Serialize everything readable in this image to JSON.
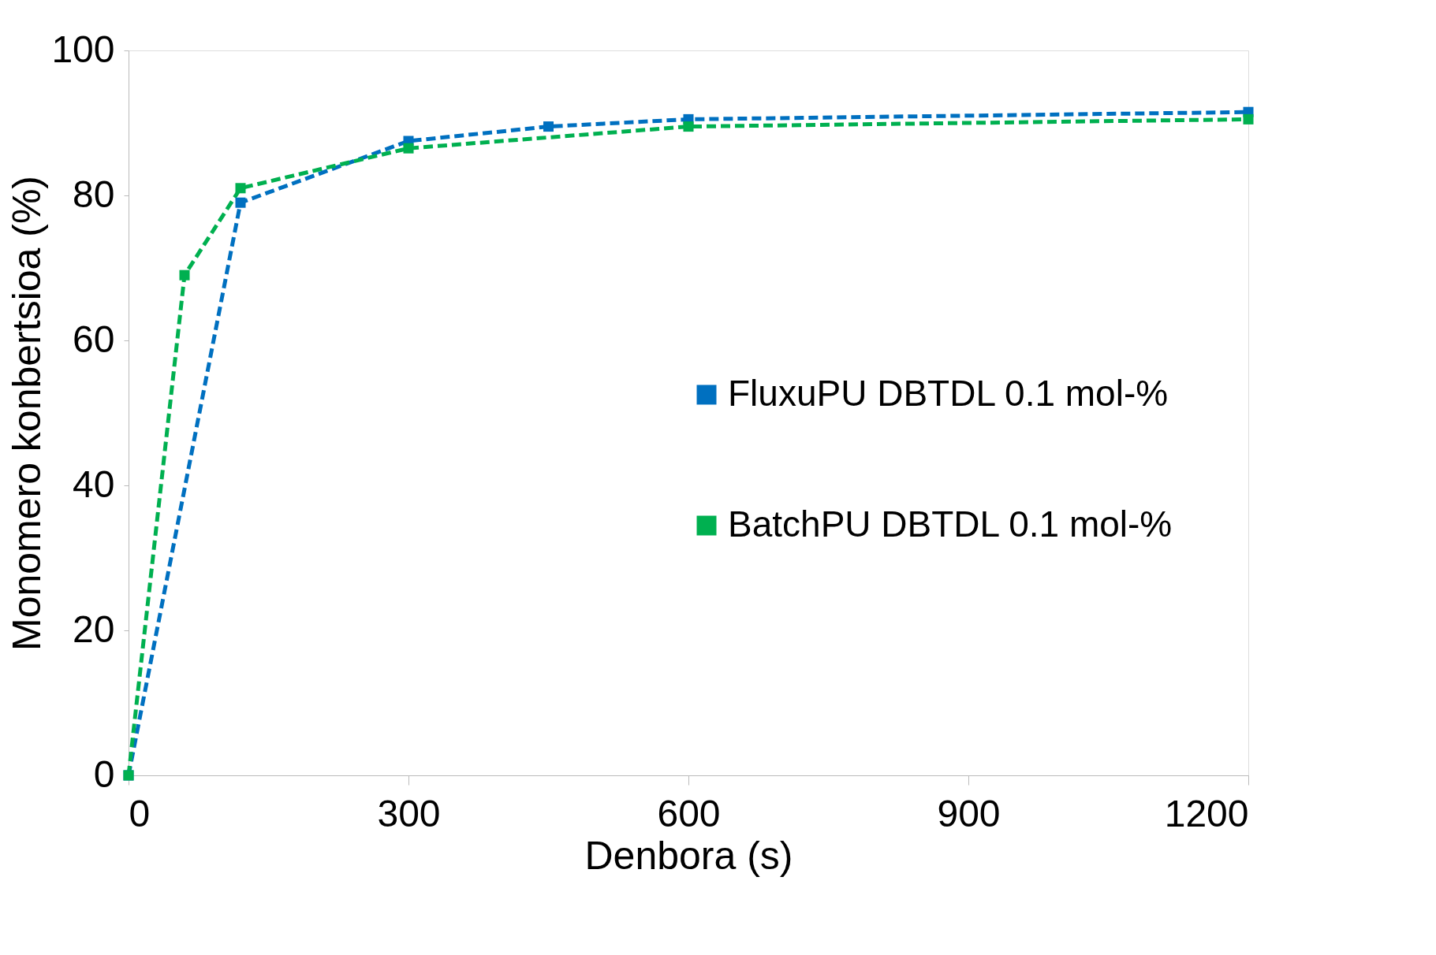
{
  "chart_data": {
    "type": "line",
    "xlabel": "Denbora (s)",
    "ylabel": "Monomero konbertsioa (%)",
    "xlim": [
      0,
      1200
    ],
    "xticks": [
      0,
      300,
      600,
      900,
      1200
    ],
    "ylim": [
      0,
      100
    ],
    "yticks": [
      0,
      20,
      40,
      60,
      80,
      100
    ],
    "grid": false,
    "legend": "right",
    "marker": "square",
    "line_style": "dashed",
    "series": [
      {
        "name": "FluxuPU DBTDL 0.1 mol-%",
        "color": "#0070c0",
        "x": [
          0,
          120,
          300,
          450,
          600,
          1200
        ],
        "values": [
          0,
          79,
          87.5,
          89.5,
          90.5,
          91.5
        ]
      },
      {
        "name": "BatchPU DBTDL 0.1 mol-%",
        "color": "#00b050",
        "x": [
          0,
          60,
          120,
          300,
          600,
          1200
        ],
        "values": [
          0,
          69,
          81,
          86.5,
          89.5,
          90.5
        ]
      }
    ]
  }
}
